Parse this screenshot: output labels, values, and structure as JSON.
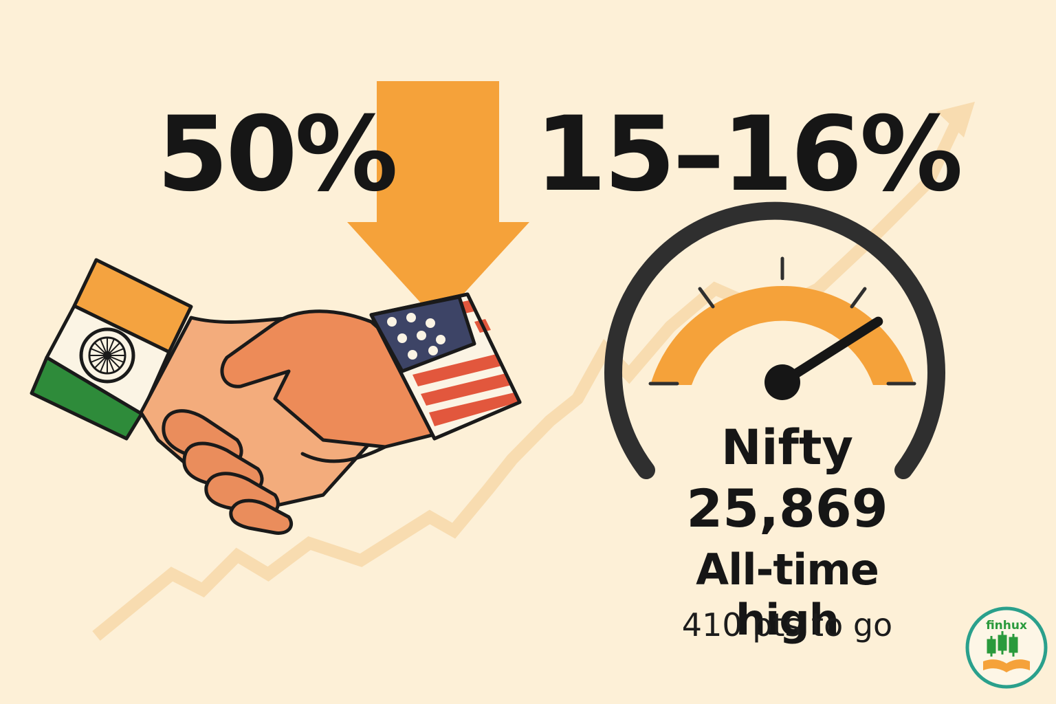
{
  "headline": {
    "left_percent": "50%",
    "right_percent": "15–16%"
  },
  "index": {
    "name": "Nifty",
    "value": "25,869",
    "status": "All-time high",
    "remaining": "410 pts to go",
    "gauge_level": 0.82
  },
  "brand": {
    "logo_text": "finhux"
  },
  "flags": {
    "left_country": "india-flag",
    "right_country": "usa-flag"
  },
  "colors": {
    "background": "#fdf0d7",
    "accent_orange": "#f5a23a",
    "trend_line": "#f8dcb0",
    "text": "#161616"
  }
}
